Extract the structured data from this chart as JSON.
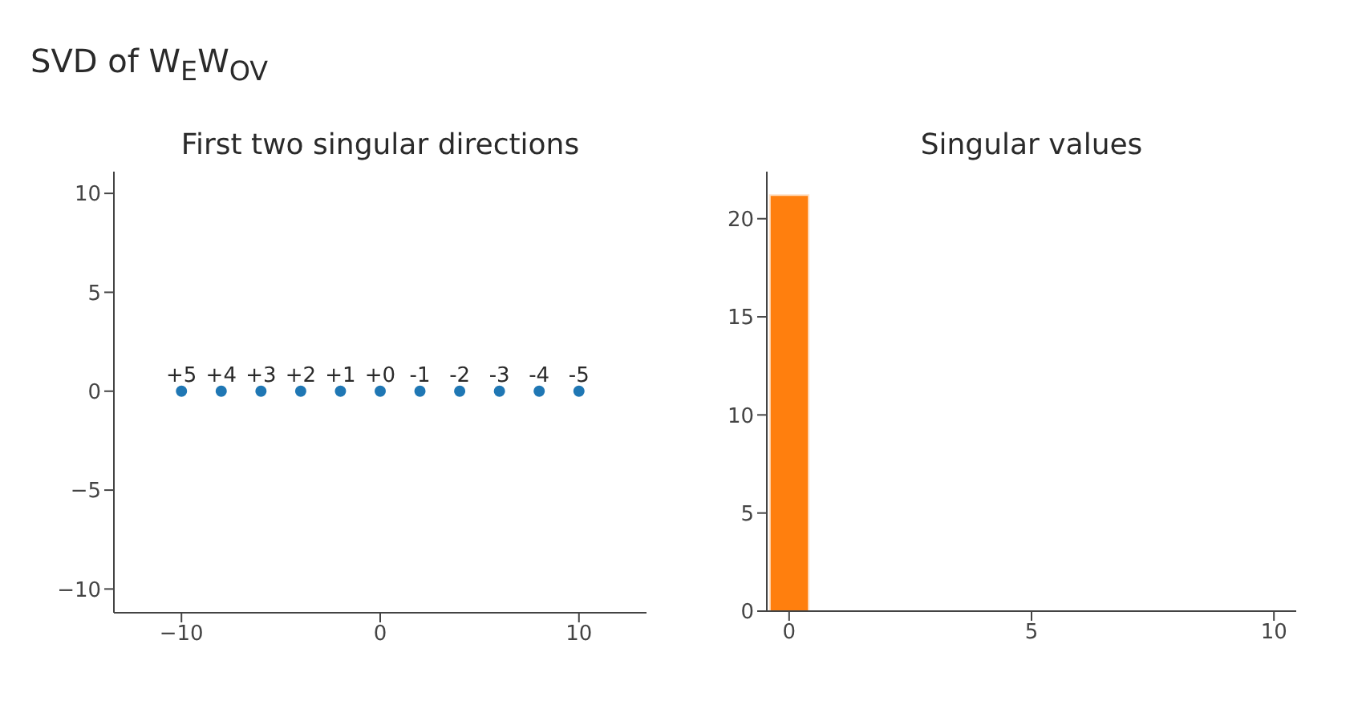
{
  "chart_data": [
    {
      "type": "scatter",
      "title": "SVD of W$_{E}$W$_{OV}$",
      "subtitle": "First two singular directions",
      "xlim": [
        -13.4,
        13.4
      ],
      "xticks": [
        -10,
        0,
        10
      ],
      "ylim": [
        -11.2,
        11.1
      ],
      "yticks": [
        -10,
        -5,
        0,
        5,
        10
      ],
      "marker": "circle",
      "series": [
        {
          "color": "#1f77b4",
          "x": [
            -10,
            -8,
            -6,
            -4,
            -2,
            0,
            2,
            4,
            6,
            8,
            10
          ],
          "values": [
            0,
            0,
            0,
            0,
            0,
            0,
            0,
            0,
            0,
            0,
            0
          ]
        }
      ],
      "annotations": [
        {
          "text": "+5",
          "x": -10,
          "y": 0
        },
        {
          "text": "+4",
          "x": -8,
          "y": 0
        },
        {
          "text": "+3",
          "x": -6,
          "y": 0
        },
        {
          "text": "+2",
          "x": -4,
          "y": 0
        },
        {
          "text": "+1",
          "x": -2,
          "y": 0
        },
        {
          "text": "+0",
          "x": 0,
          "y": 0
        },
        {
          "text": "-1",
          "x": 2,
          "y": 0
        },
        {
          "text": "-2",
          "x": 4,
          "y": 0
        },
        {
          "text": "-3",
          "x": 6,
          "y": 0
        },
        {
          "text": "-4",
          "x": 8,
          "y": 0
        },
        {
          "text": "-5",
          "x": 10,
          "y": 0
        }
      ]
    },
    {
      "type": "bar",
      "title": "Singular values",
      "x": [
        0
      ],
      "values": [
        21.2
      ],
      "color": "#ff7f0e",
      "xlim": [
        -0.46,
        10.46
      ],
      "xticks": [
        0,
        5,
        10
      ],
      "ylim": [
        0,
        22.4
      ],
      "yticks": [
        0,
        5,
        10,
        15,
        20
      ]
    }
  ]
}
